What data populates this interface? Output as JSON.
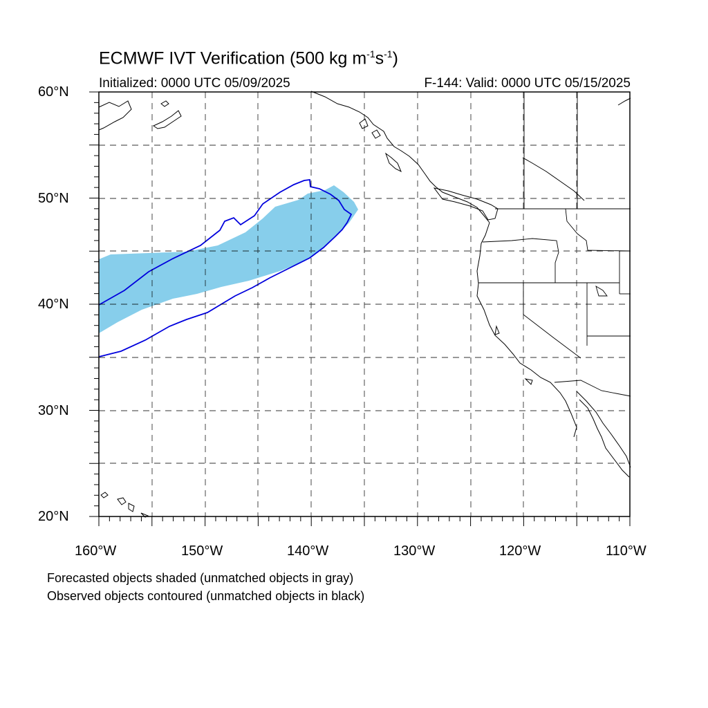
{
  "title": {
    "main": "ECMWF IVT Verification (500 kg m",
    "exp1": "-1",
    "mid": "s",
    "exp2": "-1",
    "end": ")"
  },
  "initialized": "Initialized: 0000 UTC 05/09/2025",
  "valid": "F-144: Valid: 0000 UTC 05/15/2025",
  "lat_labels": [
    "60°N",
    "50°N",
    "40°N",
    "30°N",
    "20°N"
  ],
  "lon_labels": [
    "160°W",
    "150°W",
    "140°W",
    "130°W",
    "120°W",
    "110°W"
  ],
  "notes": [
    "Forecasted objects shaded (unmatched objects in gray)",
    "Observed objects contoured (unmatched objects in black)"
  ],
  "colors": {
    "forecast_fill": "#87ceeb",
    "observed_contour": "#0000dd",
    "coastline": "#000000",
    "grid": "#000000"
  },
  "map_extent": {
    "lon_min": -160,
    "lon_max": -110,
    "lat_min": 20,
    "lat_max": 60
  }
}
